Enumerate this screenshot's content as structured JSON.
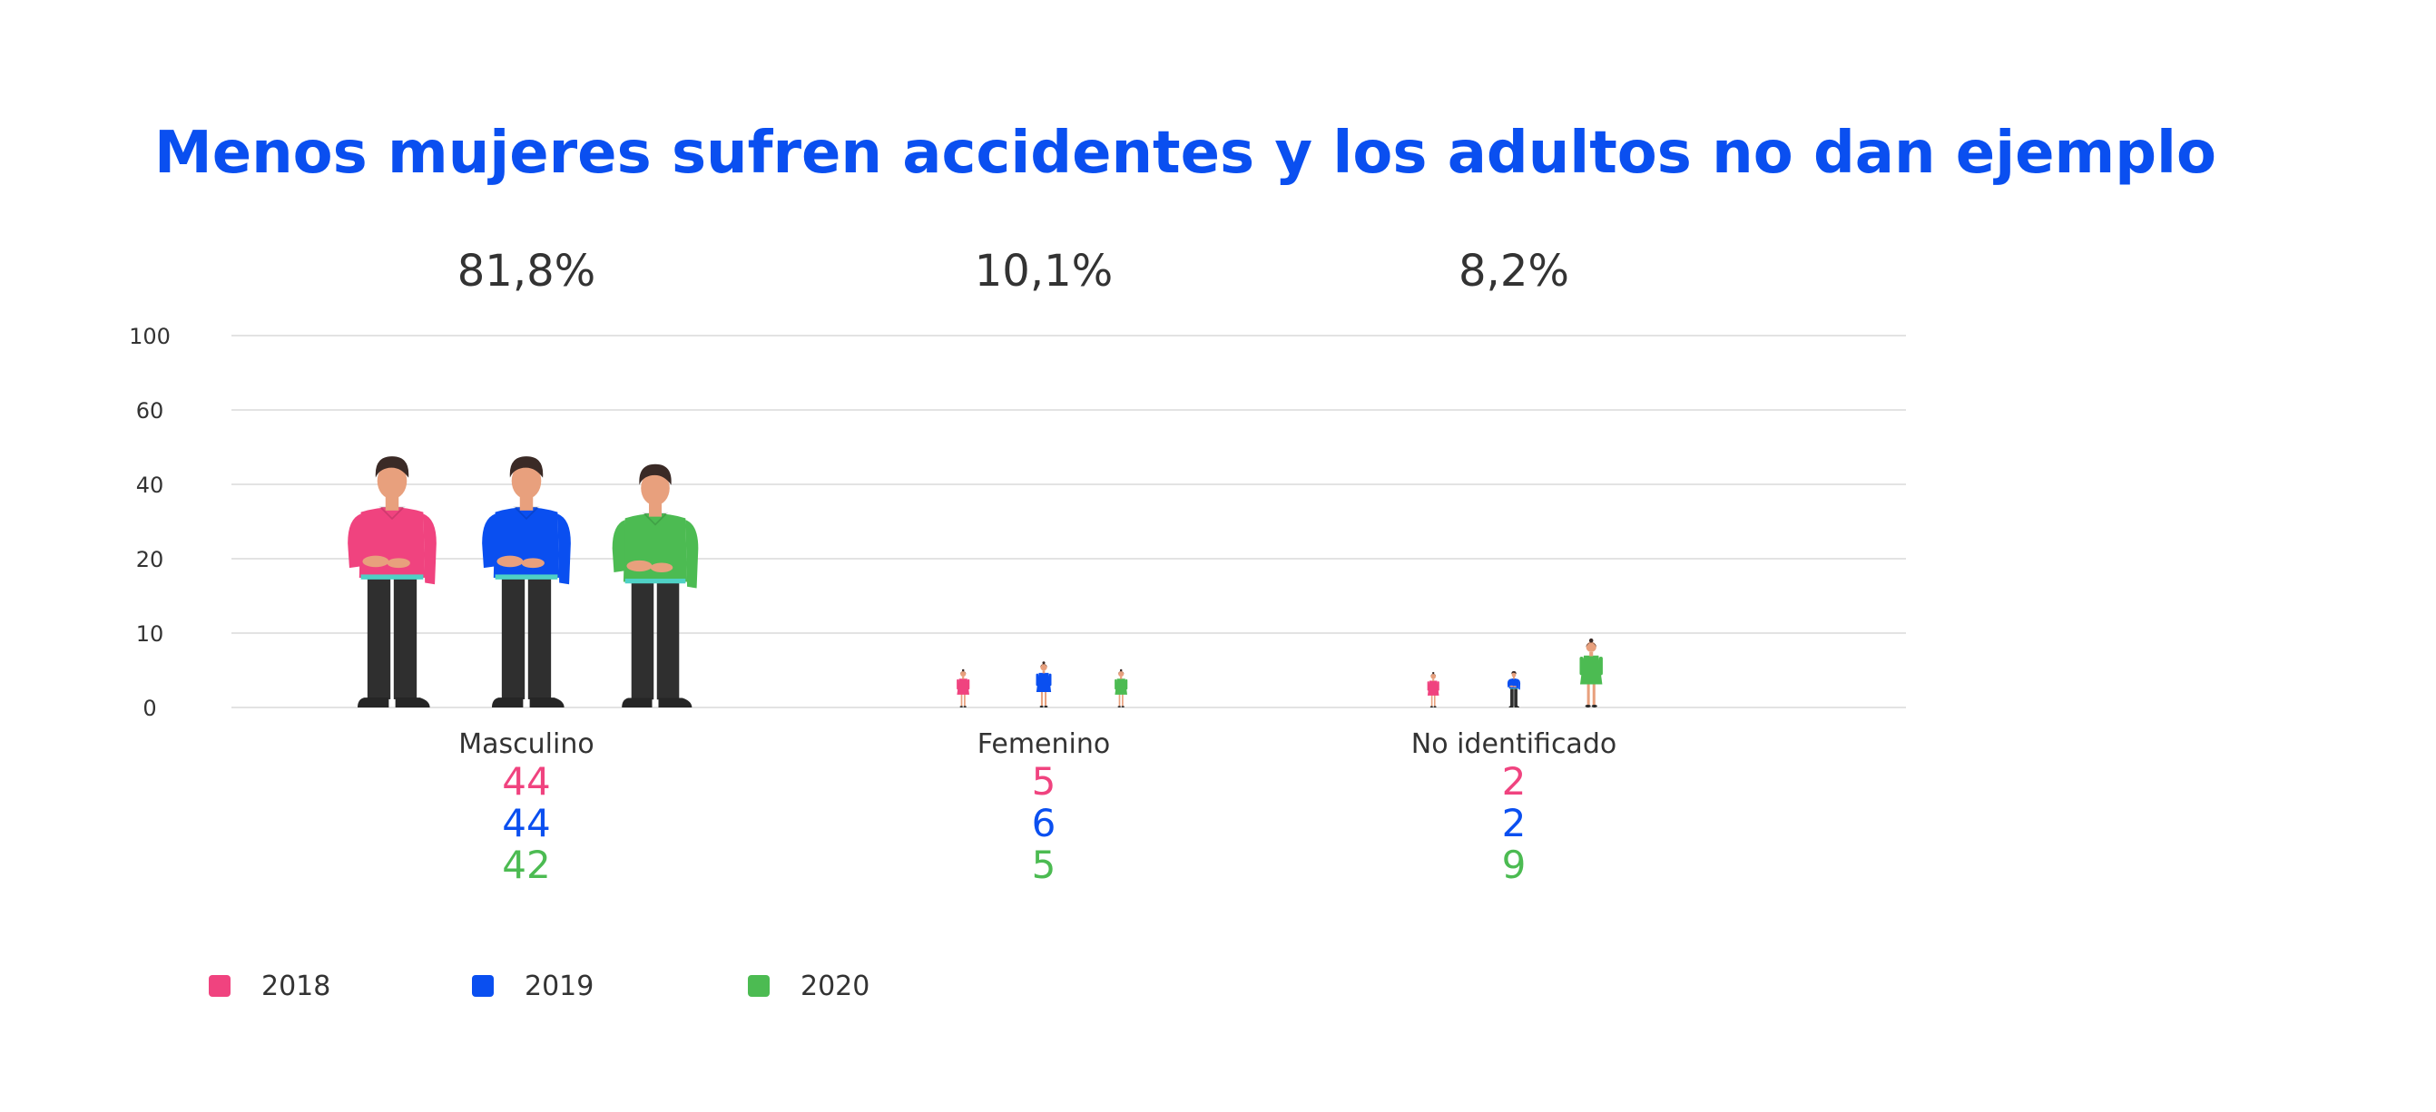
{
  "chart_data": {
    "type": "bar",
    "title": "Menos mujeres sufren accidentes y los adultos no dan ejemplo",
    "categories": [
      "Masculino",
      "Femenino",
      "No identificado"
    ],
    "category_percentages": [
      "81,8%",
      "10,1%",
      "8,2%"
    ],
    "y_tick_labels": [
      "0",
      "10",
      "20",
      "40",
      "60",
      "100"
    ],
    "grid": true,
    "series": [
      {
        "name": "2018",
        "color": "#f0437f",
        "values": [
          44,
          5,
          2
        ]
      },
      {
        "name": "2019",
        "color": "#0a4ff0",
        "values": [
          44,
          6,
          2
        ]
      },
      {
        "name": "2020",
        "color": "#4cbb52",
        "values": [
          42,
          5,
          9
        ]
      }
    ],
    "value_labels": [
      [
        "44",
        "44",
        "42"
      ],
      [
        "5",
        "6",
        "5"
      ],
      [
        "2",
        "2",
        "9"
      ]
    ],
    "legend_position": "bottom-left",
    "mark_style": "person-icons",
    "colors": {
      "title": "#0a4ff0",
      "text": "#333333",
      "grid": "#e3e3e3",
      "skin": "#e8a07d",
      "hair": "#3a2a26",
      "pants": "#2f2f2f",
      "shoes": "#262626"
    }
  }
}
